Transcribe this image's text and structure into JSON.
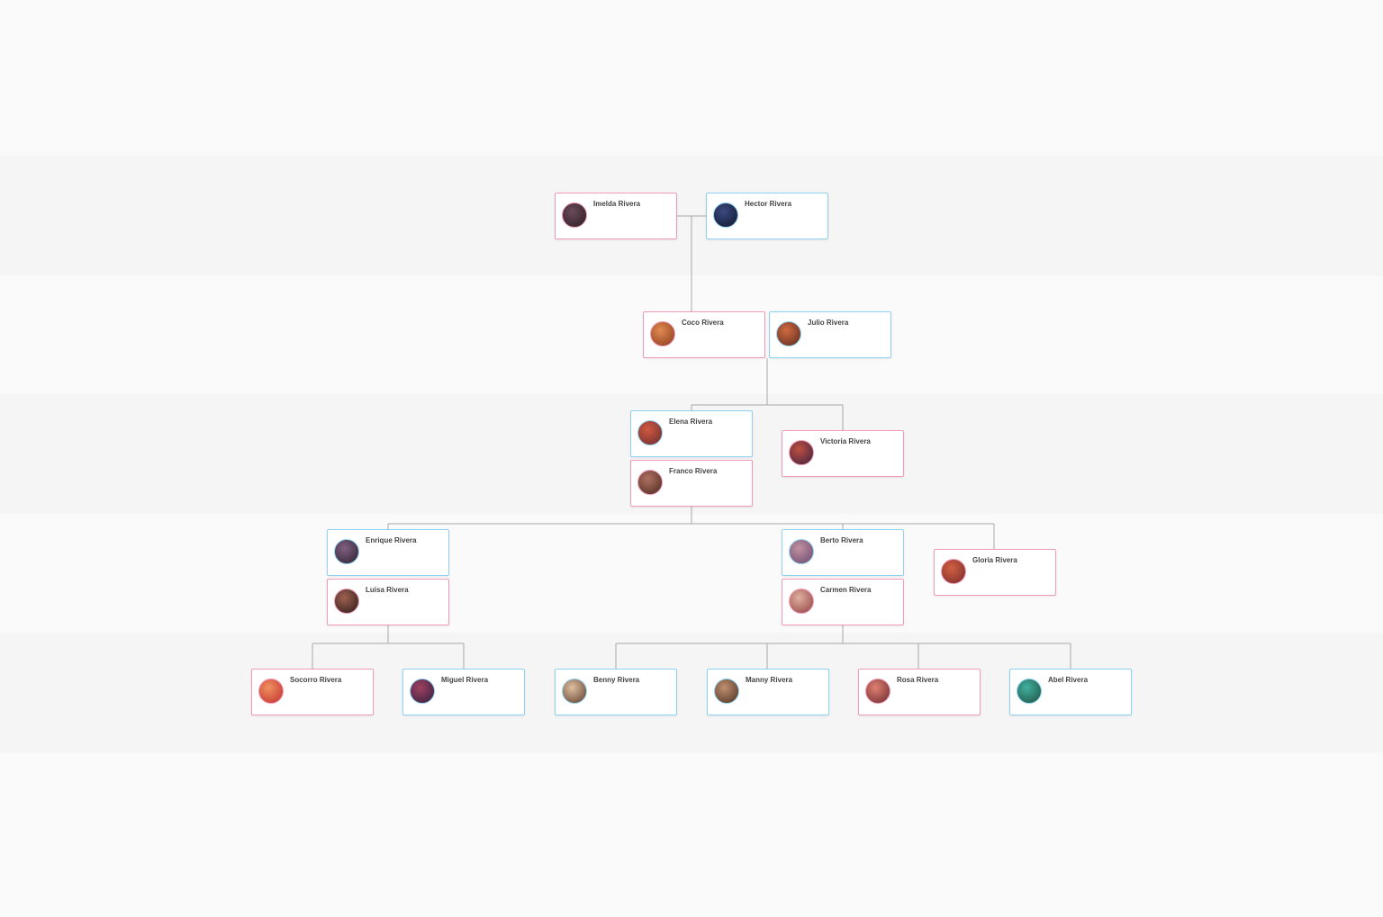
{
  "colors": {
    "female": "#f29bb8",
    "male": "#8fd3f2",
    "line": "#aaaaaa"
  },
  "people": [
    {
      "name": "Imelda Rivera",
      "gender": "female",
      "avatar": [
        "#6b4a5a",
        "#2a1d22"
      ]
    },
    {
      "name": "Hector Rivera",
      "gender": "male",
      "avatar": [
        "#3b4a80",
        "#10142a"
      ]
    },
    {
      "name": "Coco Rivera",
      "gender": "female",
      "avatar": [
        "#e08a50",
        "#8a3a20"
      ]
    },
    {
      "name": "Julio Rivera",
      "gender": "male",
      "avatar": [
        "#d06a40",
        "#5a2a20"
      ]
    },
    {
      "name": "Elena Rivera",
      "gender": "male",
      "avatar": [
        "#d05a40",
        "#6a2a30"
      ]
    },
    {
      "name": "Franco Rivera",
      "gender": "female",
      "avatar": [
        "#b07060",
        "#4a2a20"
      ]
    },
    {
      "name": "Victoria Rivera",
      "gender": "female",
      "avatar": [
        "#c05040",
        "#3a2040"
      ]
    },
    {
      "name": "Enrique Rivera",
      "gender": "male",
      "avatar": [
        "#806080",
        "#2a2030"
      ]
    },
    {
      "name": "Luisa Rivera",
      "gender": "female",
      "avatar": [
        "#a06050",
        "#2a1a1a"
      ]
    },
    {
      "name": "Berto Rivera",
      "gender": "male",
      "avatar": [
        "#c090a0",
        "#6a4a70"
      ]
    },
    {
      "name": "Carmen Rivera",
      "gender": "female",
      "avatar": [
        "#e0b0a0",
        "#904040"
      ]
    },
    {
      "name": "Gloria Rivera",
      "gender": "female",
      "avatar": [
        "#d06040",
        "#7a2a30"
      ]
    },
    {
      "name": "Socorro Rivera",
      "gender": "female",
      "avatar": [
        "#f09060",
        "#c03030"
      ]
    },
    {
      "name": "Miguel Rivera",
      "gender": "male",
      "avatar": [
        "#a04060",
        "#302040"
      ]
    },
    {
      "name": "Benny Rivera",
      "gender": "male",
      "avatar": [
        "#e0c0a0",
        "#5a3a2a"
      ]
    },
    {
      "name": "Manny Rivera",
      "gender": "male",
      "avatar": [
        "#c09070",
        "#4a3020"
      ]
    },
    {
      "name": "Rosa Rivera",
      "gender": "female",
      "avatar": [
        "#e08070",
        "#6a2a30"
      ]
    },
    {
      "name": "Abel Rivera",
      "gender": "male",
      "avatar": [
        "#40b0a0",
        "#205040"
      ]
    }
  ]
}
